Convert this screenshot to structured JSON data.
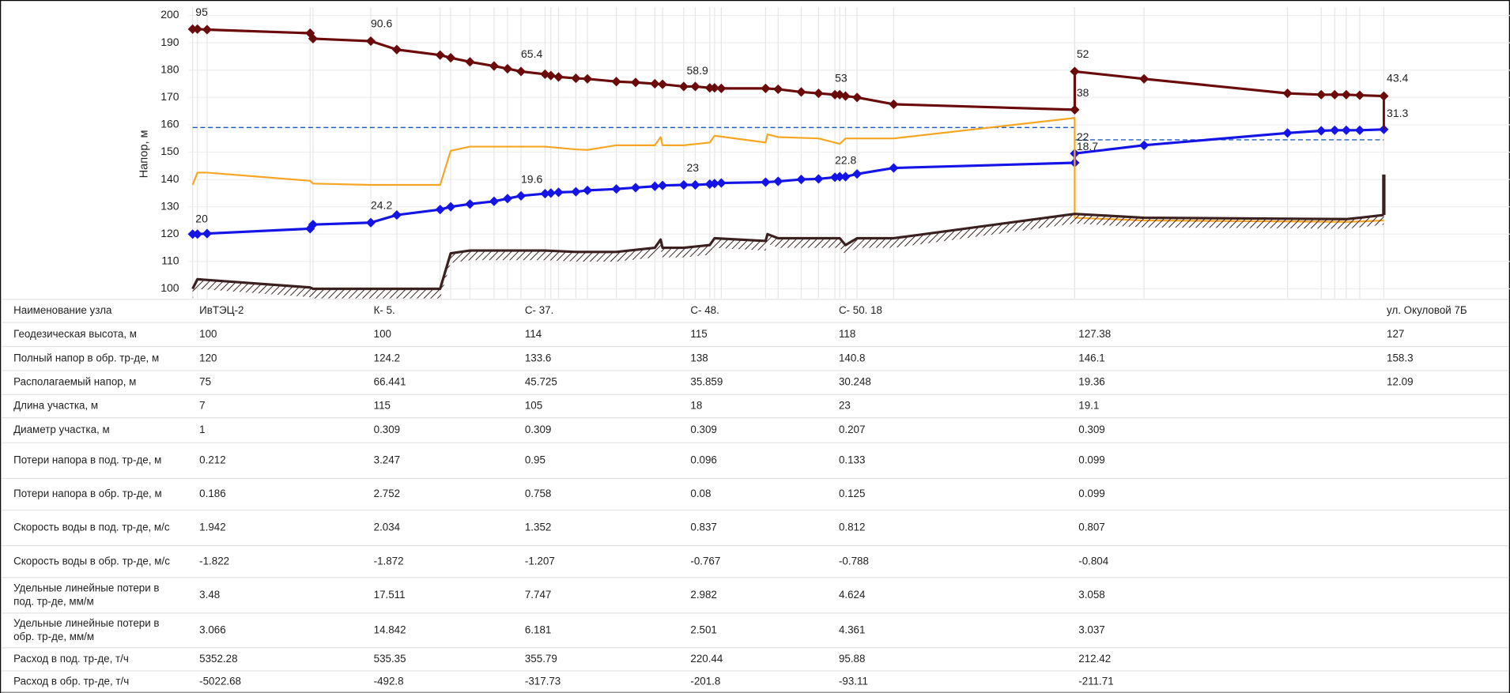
{
  "chart_data": {
    "type": "line",
    "y_label": "Напор, м",
    "ylim": [
      96.5,
      203
    ],
    "yticks": [
      100,
      110,
      120,
      130,
      140,
      150,
      160,
      170,
      180,
      190,
      200
    ],
    "xlim": [
      196,
      1568
    ],
    "grid": true,
    "series": [
      {
        "color": "#6b0a0a",
        "marker": "diamond",
        "x": [
          200,
          205,
          215,
          322,
          325,
          385,
          412,
          457,
          468,
          488,
          513,
          527,
          541,
          566,
          572,
          580,
          598,
          610,
          640,
          660,
          680,
          688,
          710,
          722,
          737,
          742,
          749,
          795,
          808,
          832,
          850,
          867,
          872,
          878,
          890,
          928,
          1116,
          1116,
          1188,
          1337,
          1372,
          1386,
          1398,
          1412,
          1437
        ],
        "values": [
          195,
          195,
          194.8,
          193.5,
          191.5,
          190.6,
          187.5,
          185.5,
          184.5,
          183,
          181.5,
          180.5,
          179.5,
          178.5,
          178,
          177.5,
          177,
          176.8,
          175.8,
          175.5,
          175,
          174.8,
          174,
          174,
          173.5,
          173.5,
          173.3,
          173.3,
          173,
          172,
          171.5,
          171,
          171,
          170.5,
          170,
          167.5,
          165.5,
          179.5,
          176.8,
          171.5,
          171,
          171,
          171,
          170.8,
          170.5
        ]
      },
      {
        "color": "#1414e6",
        "marker": "diamond",
        "x": [
          200,
          205,
          215,
          322,
          325,
          385,
          412,
          457,
          468,
          488,
          513,
          527,
          541,
          566,
          572,
          580,
          598,
          610,
          640,
          660,
          680,
          688,
          710,
          722,
          737,
          742,
          749,
          795,
          808,
          832,
          850,
          867,
          872,
          878,
          890,
          928,
          1116,
          1116,
          1188,
          1337,
          1372,
          1386,
          1398,
          1412,
          1437
        ],
        "values": [
          120,
          120,
          120.2,
          122,
          123.5,
          124.2,
          127,
          129,
          130,
          131,
          132,
          133,
          134,
          134.8,
          135,
          135.3,
          135.5,
          136,
          136.5,
          137,
          137.5,
          137.8,
          138,
          138,
          138.3,
          138.5,
          138.7,
          139,
          139.3,
          140,
          140.2,
          140.8,
          141,
          141,
          142,
          144.2,
          146.1,
          149.5,
          152.5,
          157,
          157.8,
          158,
          158,
          158,
          158.3
        ]
      },
      {
        "color": "#f5a623",
        "marker": "none",
        "x": [
          200,
          205,
          215,
          322,
          325,
          385,
          457,
          468,
          488,
          566,
          598,
          610,
          640,
          680,
          686,
          688,
          710,
          737,
          742,
          795,
          797,
          808,
          850,
          872,
          878,
          928,
          1116,
          1116,
          1188,
          1400,
          1437
        ],
        "values": [
          138,
          142.5,
          142.5,
          139.5,
          138.5,
          138,
          138,
          150.5,
          152,
          152,
          151,
          150.8,
          152.5,
          152.5,
          155.5,
          152.5,
          152.5,
          153.5,
          156,
          153.5,
          156.5,
          155.5,
          155,
          153,
          155,
          155,
          162.5,
          126,
          125,
          124.5,
          125
        ]
      },
      {
        "color": "#3b2020",
        "marker": "hatch",
        "x": [
          200,
          205,
          322,
          325,
          457,
          468,
          488,
          566,
          598,
          640,
          680,
          686,
          688,
          710,
          737,
          742,
          795,
          797,
          808,
          872,
          878,
          890,
          928,
          1116,
          1188,
          1398,
          1412,
          1437
        ],
        "values": [
          100,
          103.5,
          100.5,
          100,
          100,
          113,
          114,
          114,
          113.5,
          113.5,
          115,
          118,
          115,
          115,
          116,
          118.5,
          117.5,
          120,
          118.5,
          118.5,
          116,
          118.5,
          118.5,
          127.4,
          126,
          125.5,
          126,
          127
        ]
      }
    ],
    "reference_lines": [
      {
        "color": "#1f5fbf",
        "y": 159,
        "x": [
          200,
          1116
        ]
      },
      {
        "color": "#1f5fbf",
        "y": 154.5,
        "x": [
          1116,
          1437
        ]
      }
    ],
    "annotations": [
      {
        "text": "95",
        "x": 203,
        "y": 201
      },
      {
        "text": "90.6",
        "x": 385,
        "y": 196.8
      },
      {
        "text": "65.4",
        "x": 541,
        "y": 185.6
      },
      {
        "text": "58.9",
        "x": 713,
        "y": 179.6
      },
      {
        "text": "53",
        "x": 867,
        "y": 176.8
      },
      {
        "text": "52",
        "x": 1118,
        "y": 185.6
      },
      {
        "text": "43.4",
        "x": 1440,
        "y": 176.8
      },
      {
        "text": "38",
        "x": 1118,
        "y": 171.5
      },
      {
        "text": "31.3",
        "x": 1440,
        "y": 164
      },
      {
        "text": "22",
        "x": 1118,
        "y": 155.3
      },
      {
        "text": "18.7",
        "x": 1118,
        "y": 151.8
      },
      {
        "text": "22.8",
        "x": 867,
        "y": 146.8
      },
      {
        "text": "23",
        "x": 713,
        "y": 144
      },
      {
        "text": "19.6",
        "x": 541,
        "y": 139.8
      },
      {
        "text": "24.2",
        "x": 385,
        "y": 130.3
      },
      {
        "text": "20",
        "x": 203,
        "y": 125.4
      }
    ]
  },
  "table": {
    "header": {
      "label": "Наименование узла",
      "cells": [
        "ИвТЭЦ-2",
        "К- 5.",
        "С- 37.",
        "С- 48.",
        "С- 50. 18",
        null,
        "ул. Окуловой 7Б"
      ]
    },
    "rows": [
      {
        "label": [
          "Геодезическая высота, м"
        ],
        "cells": [
          100,
          100,
          114,
          115,
          118,
          127.38,
          127
        ]
      },
      {
        "label": [
          "Полный напор в обр. тр-де, м"
        ],
        "cells": [
          120,
          124.2,
          133.6,
          138,
          140.8,
          146.1,
          158.3
        ]
      },
      {
        "label": [
          "Располагаемый напор, м"
        ],
        "cells": [
          75,
          66.441,
          45.725,
          35.859,
          30.248,
          19.36,
          12.09
        ]
      },
      {
        "label": [
          "Длина участка, м"
        ],
        "cells": [
          7,
          115,
          105,
          18,
          23,
          19.1,
          null
        ]
      },
      {
        "label": [
          "Диаметр участка, м"
        ],
        "cells": [
          1,
          0.309,
          0.309,
          0.309,
          0.207,
          0.309,
          null
        ]
      },
      {
        "label": [
          "Потери напора в под. тр-де, м"
        ],
        "cells": [
          0.212,
          3.247,
          0.95,
          0.096,
          0.133,
          0.099,
          null
        ]
      },
      {
        "label": [
          "Потери напора в обр. тр-де, м"
        ],
        "cells": [
          0.186,
          2.752,
          0.758,
          0.08,
          0.125,
          0.099,
          null
        ]
      },
      {
        "label": [
          "Скорость воды в под. тр-де, м/с"
        ],
        "cells": [
          1.942,
          2.034,
          1.352,
          0.837,
          0.812,
          0.807,
          null
        ]
      },
      {
        "label": [
          "Скорость воды в обр. тр-де, м/с"
        ],
        "cells": [
          -1.822,
          -1.872,
          -1.207,
          -0.767,
          -0.788,
          -0.804,
          null
        ]
      },
      {
        "label": [
          "Удельные линейные потери в",
          "под. тр-де, мм/м"
        ],
        "cells": [
          3.48,
          17.511,
          7.747,
          2.982,
          4.624,
          3.058,
          null
        ]
      },
      {
        "label": [
          "Удельные линейные потери в",
          "обр. тр-де, мм/м"
        ],
        "cells": [
          3.066,
          14.842,
          6.181,
          2.501,
          4.361,
          3.037,
          null
        ]
      },
      {
        "label": [
          "Расход в под. тр-де, т/ч"
        ],
        "cells": [
          5352.28,
          535.35,
          355.79,
          220.44,
          95.88,
          212.42,
          null
        ]
      },
      {
        "label": [
          "Расход в обр. тр-де, т/ч"
        ],
        "cells": [
          -5022.68,
          -492.8,
          -317.73,
          -201.8,
          -93.11,
          -211.71,
          null
        ]
      }
    ]
  }
}
